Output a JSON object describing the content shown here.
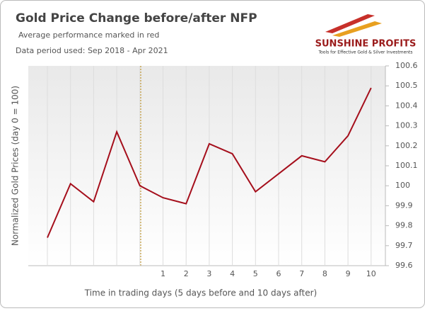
{
  "chart_data": {
    "type": "line",
    "title": "Gold Price Change before/after NFP",
    "subtitle": "Average performance marked in red",
    "period": "Data period used: Sep 2018 - Apr 2021",
    "x_label": "Time in trading days  (5 days before and 10 days after)",
    "y_label": "Normalized Gold Prices (day 0 = 100)",
    "categories": [
      null,
      null,
      null,
      null,
      null,
      "1",
      "2",
      "3",
      "4",
      "5",
      "6",
      "7",
      "8",
      "9",
      "10"
    ],
    "values": [
      99.74,
      100.01,
      99.92,
      100.27,
      100.0,
      99.94,
      99.91,
      100.21,
      100.16,
      99.97,
      100.06,
      100.15,
      100.12,
      100.25,
      100.49
    ],
    "color": "#a50f1c",
    "ylim": [
      99.6,
      100.6
    ],
    "yticks": [
      99.6,
      99.7,
      99.8,
      99.9,
      100,
      100.1,
      100.2,
      100.3,
      100.4,
      100.5,
      100.6
    ],
    "grid": true
  },
  "logo": {
    "name": "SUNSHINE PROFITS",
    "tagline": "Tools for Effective Gold & Silver Investments"
  }
}
